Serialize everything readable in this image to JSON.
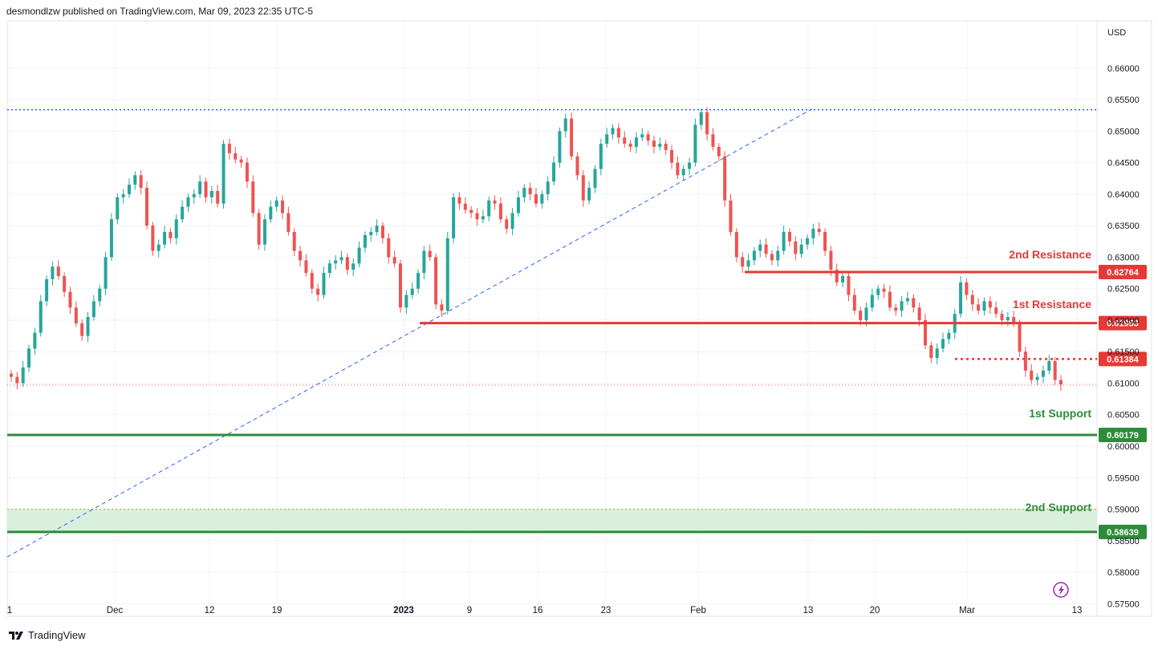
{
  "header": {
    "publisher": "desmondlzw published on TradingView.com, Mar 09, 2023 22:35 UTC-5"
  },
  "footer": {
    "brand": "TradingView",
    "logo_icon": "tradingview-logo-icon"
  },
  "colors": {
    "up": "#26a69a",
    "down": "#ef5350",
    "resistance": "#e53935",
    "support": "#2e8b3a",
    "trend": "#2962ff",
    "zone": "#d8f0dc",
    "zone_dotted": "#b5b33a"
  },
  "chart_data": {
    "type": "candlestick",
    "symbol_currency": "USD",
    "ylim": [
      0.573,
      0.6675
    ],
    "y_ticks": [
      0.66,
      0.655,
      0.65,
      0.645,
      0.64,
      0.635,
      0.63,
      0.625,
      0.62,
      0.615,
      0.61,
      0.605,
      0.6,
      0.595,
      0.59,
      0.585,
      0.58,
      0.575
    ],
    "x_ticks": [
      {
        "label": "1",
        "bold": false
      },
      {
        "label": "Dec",
        "bold": false
      },
      {
        "label": "12",
        "bold": false
      },
      {
        "label": "19",
        "bold": false
      },
      {
        "label": "2023",
        "bold": true
      },
      {
        "label": "9",
        "bold": false
      },
      {
        "label": "16",
        "bold": false
      },
      {
        "label": "23",
        "bold": false
      },
      {
        "label": "Feb",
        "bold": false
      },
      {
        "label": "13",
        "bold": false
      },
      {
        "label": "20",
        "bold": false
      },
      {
        "label": "Mar",
        "bold": false
      },
      {
        "label": "13",
        "bold": false
      }
    ],
    "levels": [
      {
        "name": "2nd Resistance",
        "value": 0.62764,
        "badge": "0.62764",
        "kind": "resistance"
      },
      {
        "name": "1st Resistance",
        "value": 0.61953,
        "badge": "0.61953",
        "kind": "resistance"
      },
      {
        "name": "",
        "value": 0.61384,
        "badge": "0.61384",
        "kind": "resistance-dotted"
      },
      {
        "name": "1st Support",
        "value": 0.60179,
        "badge": "0.60179",
        "kind": "support"
      },
      {
        "name": "2nd Support",
        "value": 0.58639,
        "badge": "0.58639",
        "kind": "support"
      }
    ],
    "support_zone": [
      0.58639,
      0.59
    ],
    "top_dotted_level": 0.6534,
    "last_price_line": 0.6097,
    "close_series": [
      0.611,
      0.61,
      0.6125,
      0.6155,
      0.618,
      0.623,
      0.6265,
      0.6285,
      0.627,
      0.6245,
      0.622,
      0.6195,
      0.6175,
      0.6205,
      0.623,
      0.625,
      0.63,
      0.636,
      0.6395,
      0.64,
      0.6415,
      0.643,
      0.641,
      0.635,
      0.631,
      0.632,
      0.634,
      0.633,
      0.636,
      0.638,
      0.6395,
      0.64,
      0.642,
      0.6395,
      0.6405,
      0.6385,
      0.648,
      0.6465,
      0.6455,
      0.645,
      0.642,
      0.637,
      0.632,
      0.636,
      0.638,
      0.639,
      0.637,
      0.634,
      0.631,
      0.6295,
      0.6275,
      0.625,
      0.624,
      0.6275,
      0.629,
      0.6295,
      0.63,
      0.628,
      0.629,
      0.6315,
      0.6335,
      0.634,
      0.635,
      0.633,
      0.63,
      0.629,
      0.622,
      0.624,
      0.625,
      0.6275,
      0.631,
      0.63,
      0.6225,
      0.6215,
      0.633,
      0.6395,
      0.6385,
      0.6375,
      0.637,
      0.636,
      0.6365,
      0.639,
      0.6385,
      0.636,
      0.6345,
      0.637,
      0.6395,
      0.641,
      0.64,
      0.6385,
      0.64,
      0.642,
      0.645,
      0.65,
      0.652,
      0.646,
      0.643,
      0.639,
      0.641,
      0.644,
      0.648,
      0.6495,
      0.6505,
      0.649,
      0.648,
      0.6475,
      0.649,
      0.6495,
      0.6485,
      0.6475,
      0.648,
      0.647,
      0.645,
      0.643,
      0.644,
      0.645,
      0.651,
      0.653,
      0.6495,
      0.6475,
      0.646,
      0.639,
      0.634,
      0.63,
      0.6285,
      0.6295,
      0.631,
      0.632,
      0.6305,
      0.6295,
      0.631,
      0.634,
      0.6325,
      0.6305,
      0.632,
      0.633,
      0.6345,
      0.634,
      0.631,
      0.628,
      0.626,
      0.627,
      0.624,
      0.6215,
      0.62,
      0.622,
      0.624,
      0.625,
      0.6245,
      0.622,
      0.6215,
      0.623,
      0.6235,
      0.622,
      0.62,
      0.616,
      0.614,
      0.6155,
      0.617,
      0.618,
      0.621,
      0.626,
      0.624,
      0.6225,
      0.6215,
      0.623,
      0.622,
      0.621,
      0.62,
      0.6205,
      0.6195,
      0.615,
      0.612,
      0.6105,
      0.611,
      0.612,
      0.6135,
      0.6105,
      0.6098
    ]
  }
}
